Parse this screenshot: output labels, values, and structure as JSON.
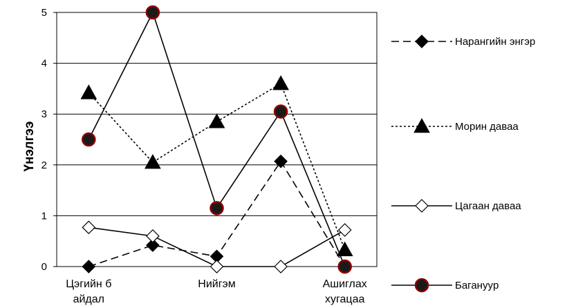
{
  "chart_data": {
    "type": "line",
    "title": "",
    "xlabel": "",
    "ylabel": "Үнэлгээ",
    "ylim": [
      0,
      5
    ],
    "yticks": [
      "0",
      "1",
      "2",
      "3",
      "4",
      "5"
    ],
    "grid": true,
    "legend_position": "right",
    "categories": [
      [
        "Цэгийн б",
        "айдал"
      ],
      [
        ""
      ],
      [
        "Нийгэм"
      ],
      [
        ""
      ],
      [
        "Ашиглах",
        "хугацаа"
      ]
    ],
    "series": [
      {
        "name": "Нарангийн энгэр",
        "values": [
          0.0,
          0.42,
          0.2,
          2.07,
          0.0
        ],
        "line": "dashed",
        "marker": "diamond-filled",
        "color": "#000000"
      },
      {
        "name": "Морин даваа",
        "values": [
          3.42,
          2.05,
          2.85,
          3.6,
          0.33
        ],
        "line": "dotted",
        "marker": "triangle-filled",
        "color": "#000000"
      },
      {
        "name": "Цагаан даваа",
        "values": [
          0.77,
          0.6,
          0.0,
          0.0,
          0.72
        ],
        "line": "solid",
        "marker": "diamond-open",
        "color": "#000000"
      },
      {
        "name": "Баганууp",
        "values": [
          2.5,
          5.0,
          1.15,
          3.05,
          0.0
        ],
        "line": "solid",
        "marker": "circle-red",
        "color": "#000000",
        "marker_edge": "#8b0000"
      }
    ]
  }
}
